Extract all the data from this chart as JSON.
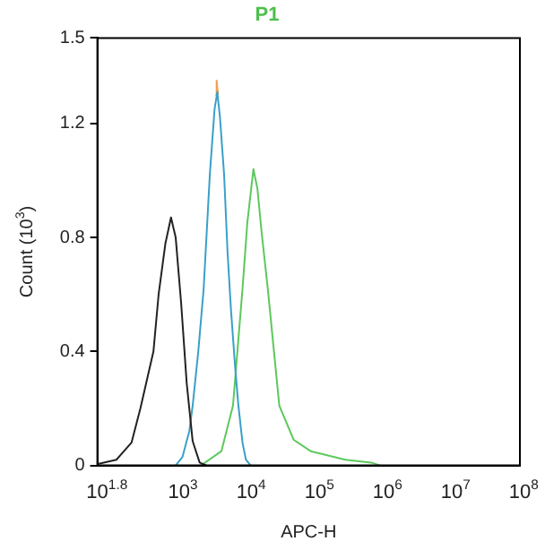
{
  "chart_data": {
    "type": "line",
    "title": "P1",
    "xlabel": "APC-H",
    "ylabel": "Count (10$^{3}$)",
    "log": "x",
    "xlim": [
      63.1,
      100000000
    ],
    "xticks": [
      {
        "value": 63.1,
        "label": "10$^{1.8}$"
      },
      {
        "value": 1000,
        "label": "10$^{3}$"
      },
      {
        "value": 10000,
        "label": "10$^{4}$"
      },
      {
        "value": 100000,
        "label": "10$^{5}$"
      },
      {
        "value": 1000000,
        "label": "10$^{6}$"
      },
      {
        "value": 10000000,
        "label": "10$^{7}$"
      },
      {
        "value": 100000000,
        "label": "10$^{8}$"
      }
    ],
    "ylim": [
      0,
      1.5
    ],
    "yticks": [
      0,
      0.4,
      0.8,
      1.2,
      1.5
    ],
    "grid": false,
    "legend": false,
    "marker": "none",
    "line_style": "solid",
    "series": [
      {
        "color": "#222222",
        "x": [
          64,
          120,
          200,
          270,
          420,
          500,
          630,
          760,
          890,
          1070,
          1290,
          1580,
          2000,
          2500
        ],
        "values": [
          0.005,
          0.02,
          0.08,
          0.2,
          0.4,
          0.6,
          0.78,
          0.87,
          0.8,
          0.57,
          0.29,
          0.085,
          0.01,
          0
        ]
      },
      {
        "color": "#3aa0c8",
        "x": [
          890,
          1120,
          1410,
          1580,
          1910,
          2290,
          2820,
          3310,
          3630,
          3980,
          4570,
          5130,
          5750,
          6610,
          7410,
          8510,
          9550,
          11200
        ],
        "values": [
          0,
          0.03,
          0.12,
          0.21,
          0.4,
          0.62,
          1.02,
          1.25,
          1.31,
          1.22,
          1.02,
          0.75,
          0.55,
          0.35,
          0.21,
          0.08,
          0.02,
          0
        ]
      },
      {
        "color": "#f0a050",
        "x": [
          3400,
          3550,
          3720
        ],
        "values": [
          1.3,
          1.35,
          1.3
        ]
      },
      {
        "color": "#5cc85c",
        "x": [
          2090,
          4170,
          6170,
          8510,
          10000,
          12300,
          14100,
          16200,
          20000,
          29500,
          47900,
          85100,
          275000,
          661000,
          891000
        ],
        "values": [
          0,
          0.05,
          0.21,
          0.62,
          0.85,
          1.04,
          0.97,
          0.82,
          0.62,
          0.21,
          0.09,
          0.05,
          0.02,
          0.01,
          0
        ]
      }
    ]
  }
}
